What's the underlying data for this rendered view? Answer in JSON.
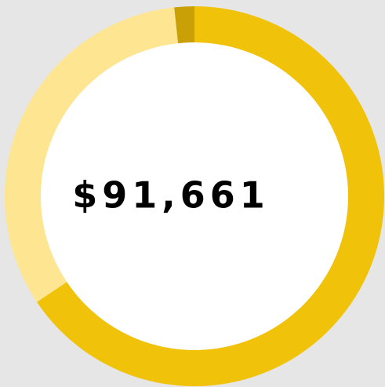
{
  "chart_data": {
    "type": "donut",
    "center_label": "$91,661",
    "values": [
      65.6,
      32.7,
      1.7
    ],
    "colors": [
      "#f0c20a",
      "#fde592",
      "#c9a005"
    ]
  }
}
